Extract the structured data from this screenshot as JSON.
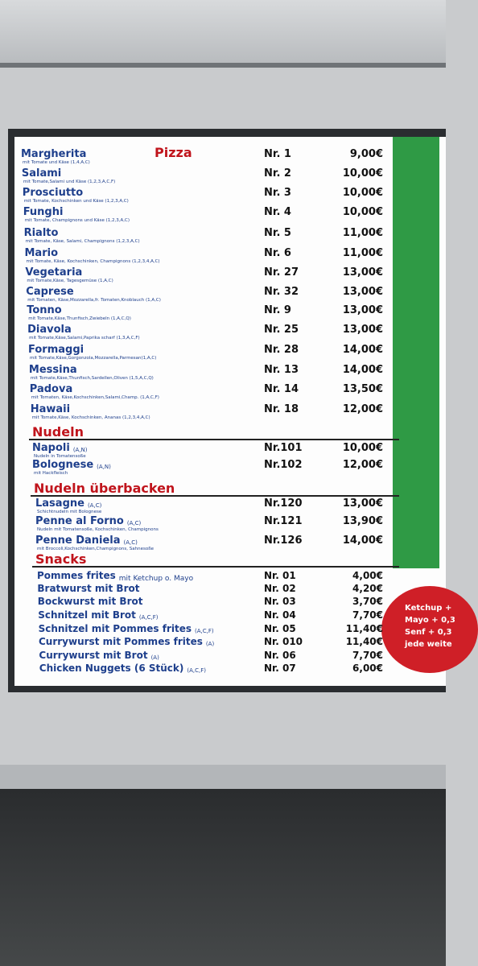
{
  "sections": [
    {
      "title": "Pizza",
      "items": [
        {
          "name": "Margherita",
          "desc": "mit Tomate und Käse (1,4,A,C)",
          "nr": "Nr. 1",
          "price": "9,00€"
        },
        {
          "name": "Salami",
          "desc": "mit Tomate,Salami und Käse (1,2,3,A,C,F)",
          "nr": "Nr. 2",
          "price": "10,00€"
        },
        {
          "name": "Prosciutto",
          "desc": "mit Tomate, Kochschinken und Käse (1,2,3,A,C)",
          "nr": "Nr. 3",
          "price": "10,00€"
        },
        {
          "name": "Funghi",
          "desc": "mit Tomate, Champignons und Käse (1,2,3,A,C)",
          "nr": "Nr. 4",
          "price": "10,00€"
        },
        {
          "name": "Rialto",
          "desc": "mit Tomate, Käse, Salami, Champignons (1,2,3,A,C)",
          "nr": "Nr. 5",
          "price": "11,00€"
        },
        {
          "name": "Mario",
          "desc": "mit Tomate, Käse, Kochschinken, Champignons (1,2,3,4,A,C)",
          "nr": "Nr. 6",
          "price": "11,00€"
        },
        {
          "name": "Vegetaria",
          "desc": "mit Tomate,Käse, Tagesgemüse (1,A,C)",
          "nr": "Nr. 27",
          "price": "13,00€"
        },
        {
          "name": "Caprese",
          "desc": "mit Tomaten, Käse,Mozzarella,fr. Tomaten,Knoblauch (1,A,C)",
          "nr": "Nr. 32",
          "price": "13,00€"
        },
        {
          "name": "Tonno",
          "desc": "mit Tomate,Käse,Thunfisch,Zwiebeln (1,A,C,Q)",
          "nr": "Nr. 9",
          "price": "13,00€"
        },
        {
          "name": "Diavola",
          "desc": "mit Tomate,Käse,Salami,Paprika scharf (1,3,A,C,F)",
          "nr": "Nr. 25",
          "price": "13,00€"
        },
        {
          "name": "Formaggi",
          "desc": "mit Tomate,Käse,Gorgonzola,Mozzarella,Parmesan(1,A,C)",
          "nr": "Nr. 28",
          "price": "14,00€"
        },
        {
          "name": "Messina",
          "desc": "mit Tomate,Käse,Thunfisch,Sardellen,Oliven (1,5,A,C,Q)",
          "nr": "Nr. 13",
          "price": "14,00€"
        },
        {
          "name": "Padova",
          "desc": "mit Tomaten, Käse,Kochschinken,Salami,Champ. (1,A,C,F)",
          "nr": "Nr. 14",
          "price": "13,50€"
        },
        {
          "name": "Hawaii",
          "desc": "mit Tomate,Käse, Kochschinken, Ananas (1,2,3,4,A,C)",
          "nr": "Nr. 18",
          "price": "12,00€"
        }
      ]
    },
    {
      "title": "Nudeln",
      "items": [
        {
          "name": "Napoli",
          "note": "(A,N)",
          "desc": "Nudeln in Tomatensoße",
          "nr": "Nr.101",
          "price": "10,00€"
        },
        {
          "name": "Bolognese",
          "note": "(A,N)",
          "desc": "mit Hackfleisch",
          "nr": "Nr.102",
          "price": "12,00€"
        }
      ]
    },
    {
      "title": "Nudeln überbacken",
      "items": [
        {
          "name": "Lasagne",
          "note": "(A,C)",
          "desc": "Schichtnudeln mit Bolognese",
          "nr": "Nr.120",
          "price": "13,00€"
        },
        {
          "name": "Penne al Forno",
          "note": "(A,C)",
          "desc": "Nudeln mit Tomatensoße, Kochschinken, Champignons",
          "nr": "Nr.121",
          "price": "13,90€"
        },
        {
          "name": "Penne Daniela",
          "note": "(A,C)",
          "desc": "mit Broccoli,Kochschinken,Champignons, Sahnesoße",
          "nr": "Nr.126",
          "price": "14,00€"
        }
      ]
    },
    {
      "title": "Snacks",
      "items": [
        {
          "name": "Pommes frites",
          "note": "mit Ketchup o. Mayo",
          "nr": "Nr. 01",
          "price": "4,00€"
        },
        {
          "name": "Bratwurst mit Brot",
          "nr": "Nr. 02",
          "price": "4,20€"
        },
        {
          "name": "Bockwurst mit Brot",
          "nr": "Nr. 03",
          "price": "3,70€"
        },
        {
          "name": "Schnitzel mit Brot",
          "note": "(A,C,F)",
          "nr": "Nr. 04",
          "price": "7,70€"
        },
        {
          "name": "Schnitzel mit Pommes frites",
          "note": "(A,C,F)",
          "nr": "Nr. 05",
          "price": "11,40€"
        },
        {
          "name": "Currywurst mit Pommes frites",
          "note": "(A)",
          "nr": "Nr. 010",
          "price": "11,40€"
        },
        {
          "name": "Currywurst mit Brot",
          "note": "(A)",
          "nr": "Nr. 06",
          "price": "7,70€"
        },
        {
          "name": "Chicken Nuggets (6 Stück)",
          "note": "(A,C,F)",
          "nr": "Nr. 07",
          "price": "6,00€"
        }
      ]
    }
  ],
  "badge": [
    "Ketchup +",
    "Mayo + 0,3",
    "Senf + 0,3",
    "jede weite"
  ]
}
